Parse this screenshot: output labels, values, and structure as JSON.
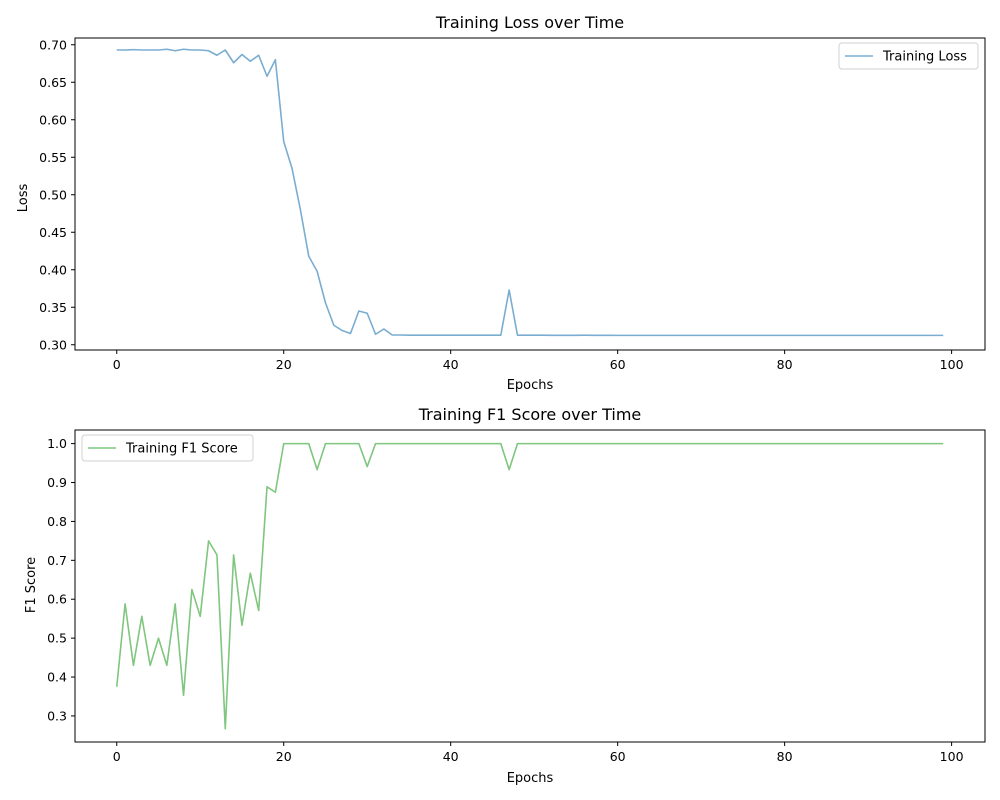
{
  "chart_data": [
    {
      "type": "line",
      "title": "Training Loss over Time",
      "xlabel": "Epochs",
      "ylabel": "Loss",
      "xlim": [
        -5,
        104
      ],
      "ylim": [
        0.293,
        0.709
      ],
      "xticks": [
        0,
        20,
        40,
        60,
        80,
        100
      ],
      "yticks": [
        0.3,
        0.35,
        0.4,
        0.45,
        0.5,
        0.55,
        0.6,
        0.65,
        0.7
      ],
      "grid": false,
      "legend_position": "upper right",
      "series": [
        {
          "name": "Training Loss",
          "color": "#7aadd0",
          "x": [
            0,
            1,
            2,
            3,
            4,
            5,
            6,
            7,
            8,
            9,
            10,
            11,
            12,
            13,
            14,
            15,
            16,
            17,
            18,
            19,
            20,
            21,
            22,
            23,
            24,
            25,
            26,
            27,
            28,
            29,
            30,
            31,
            32,
            33,
            34,
            35,
            36,
            37,
            38,
            39,
            40,
            41,
            42,
            43,
            44,
            45,
            46,
            47,
            48,
            49,
            50,
            51,
            52,
            53,
            54,
            55,
            56,
            57,
            58,
            59,
            60,
            61,
            62,
            63,
            64,
            65,
            66,
            67,
            68,
            69,
            70,
            71,
            72,
            73,
            74,
            75,
            76,
            77,
            78,
            79,
            80,
            81,
            82,
            83,
            84,
            85,
            86,
            87,
            88,
            89,
            90,
            91,
            92,
            93,
            94,
            95,
            96,
            97,
            98,
            99
          ],
          "values": [
            0.693,
            0.693,
            0.6935,
            0.693,
            0.693,
            0.693,
            0.694,
            0.692,
            0.694,
            0.693,
            0.693,
            0.692,
            0.686,
            0.693,
            0.676,
            0.687,
            0.678,
            0.686,
            0.658,
            0.68,
            0.571,
            0.535,
            0.48,
            0.418,
            0.398,
            0.356,
            0.326,
            0.319,
            0.315,
            0.345,
            0.342,
            0.314,
            0.321,
            0.313,
            0.313,
            0.3128,
            0.3128,
            0.3128,
            0.3127,
            0.3128,
            0.3128,
            0.3128,
            0.3127,
            0.3127,
            0.3128,
            0.3127,
            0.3127,
            0.373,
            0.3127,
            0.3127,
            0.3127,
            0.3127,
            0.3126,
            0.3126,
            0.3126,
            0.3126,
            0.3127,
            0.3126,
            0.3126,
            0.3126,
            0.3125,
            0.3125,
            0.3125,
            0.3125,
            0.3125,
            0.3125,
            0.3125,
            0.3125,
            0.3125,
            0.3125,
            0.3125,
            0.3125,
            0.3125,
            0.3125,
            0.3125,
            0.3125,
            0.3125,
            0.3125,
            0.3125,
            0.3125,
            0.3125,
            0.3125,
            0.3125,
            0.3125,
            0.3125,
            0.3125,
            0.3125,
            0.3125,
            0.3125,
            0.3125,
            0.3125,
            0.3125,
            0.3125,
            0.3125,
            0.3125,
            0.3125,
            0.3125,
            0.3125,
            0.3125,
            0.3125
          ]
        }
      ]
    },
    {
      "type": "line",
      "title": "Training F1 Score over Time",
      "xlabel": "Epochs",
      "ylabel": "F1 Score",
      "xlim": [
        -5,
        104
      ],
      "ylim": [
        0.233,
        1.035
      ],
      "xticks": [
        0,
        20,
        40,
        60,
        80,
        100
      ],
      "yticks": [
        0.3,
        0.4,
        0.5,
        0.6,
        0.7,
        0.8,
        0.9,
        1.0
      ],
      "grid": false,
      "legend_position": "upper left",
      "series": [
        {
          "name": "Training F1 Score",
          "color": "#7fc67f",
          "x": [
            0,
            1,
            2,
            3,
            4,
            5,
            6,
            7,
            8,
            9,
            10,
            11,
            12,
            13,
            14,
            15,
            16,
            17,
            18,
            19,
            20,
            21,
            22,
            23,
            24,
            25,
            26,
            27,
            28,
            29,
            30,
            31,
            32,
            33,
            34,
            35,
            36,
            37,
            38,
            39,
            40,
            41,
            42,
            43,
            44,
            45,
            46,
            47,
            48,
            49,
            50,
            51,
            52,
            53,
            54,
            55,
            56,
            57,
            58,
            59,
            60,
            61,
            62,
            63,
            64,
            65,
            66,
            67,
            68,
            69,
            70,
            71,
            72,
            73,
            74,
            75,
            76,
            77,
            78,
            79,
            80,
            81,
            82,
            83,
            84,
            85,
            86,
            87,
            88,
            89,
            90,
            91,
            92,
            93,
            94,
            95,
            96,
            97,
            98,
            99
          ],
          "values": [
            0.375,
            0.588,
            0.43,
            0.556,
            0.43,
            0.5,
            0.43,
            0.588,
            0.353,
            0.625,
            0.556,
            0.75,
            0.714,
            0.267,
            0.714,
            0.533,
            0.667,
            0.571,
            0.889,
            0.875,
            1.0,
            1.0,
            1.0,
            1.0,
            0.933,
            1.0,
            1.0,
            1.0,
            1.0,
            1.0,
            0.941,
            1.0,
            1.0,
            1.0,
            1.0,
            1.0,
            1.0,
            1.0,
            1.0,
            1.0,
            1.0,
            1.0,
            1.0,
            1.0,
            1.0,
            1.0,
            1.0,
            0.933,
            1.0,
            1.0,
            1.0,
            1.0,
            1.0,
            1.0,
            1.0,
            1.0,
            1.0,
            1.0,
            1.0,
            1.0,
            1.0,
            1.0,
            1.0,
            1.0,
            1.0,
            1.0,
            1.0,
            1.0,
            1.0,
            1.0,
            1.0,
            1.0,
            1.0,
            1.0,
            1.0,
            1.0,
            1.0,
            1.0,
            1.0,
            1.0,
            1.0,
            1.0,
            1.0,
            1.0,
            1.0,
            1.0,
            1.0,
            1.0,
            1.0,
            1.0,
            1.0,
            1.0,
            1.0,
            1.0,
            1.0,
            1.0,
            1.0,
            1.0,
            1.0,
            1.0
          ]
        }
      ]
    }
  ]
}
